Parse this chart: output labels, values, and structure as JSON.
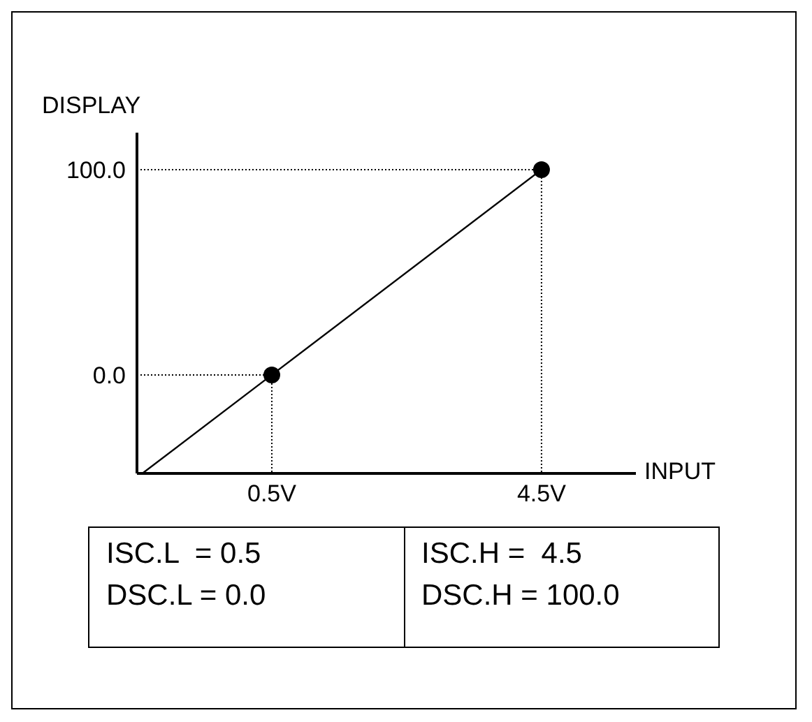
{
  "chart_data": {
    "type": "line",
    "xlabel": "INPUT",
    "ylabel": "DISPLAY",
    "xlim": [
      -1.5,
      5.9
    ],
    "ylim": [
      -48,
      118
    ],
    "xticks": [
      {
        "value": 0.5,
        "label": "0.5V"
      },
      {
        "value": 4.5,
        "label": "4.5V"
      }
    ],
    "yticks": [
      {
        "value": 0,
        "label": "0.0"
      },
      {
        "value": 100,
        "label": "100.0"
      }
    ],
    "legend": false,
    "series": [
      {
        "color": "#000000",
        "marker": "none",
        "line_style": "solid",
        "x": [
          -1.42,
          0.5,
          4.5
        ],
        "values": [
          -48,
          0,
          100
        ]
      },
      {
        "color": "#000000",
        "marker": "none",
        "line_style": "dotted",
        "x": [
          -1.5,
          0.5,
          0.5
        ],
        "values": [
          0,
          0,
          -48
        ]
      },
      {
        "color": "#000000",
        "marker": "none",
        "line_style": "dotted",
        "x": [
          -1.5,
          4.5,
          4.5
        ],
        "values": [
          100,
          100,
          -48
        ]
      },
      {
        "type": "scatter",
        "color": "#000000",
        "marker": "circle",
        "x": [
          0.5,
          4.5
        ],
        "values": [
          0,
          100
        ]
      }
    ],
    "annotations": [
      "ISC.L  = 0.5",
      "DSC.L = 0.0",
      "ISC.H =  4.5",
      "DSC.H = 100.0"
    ]
  }
}
